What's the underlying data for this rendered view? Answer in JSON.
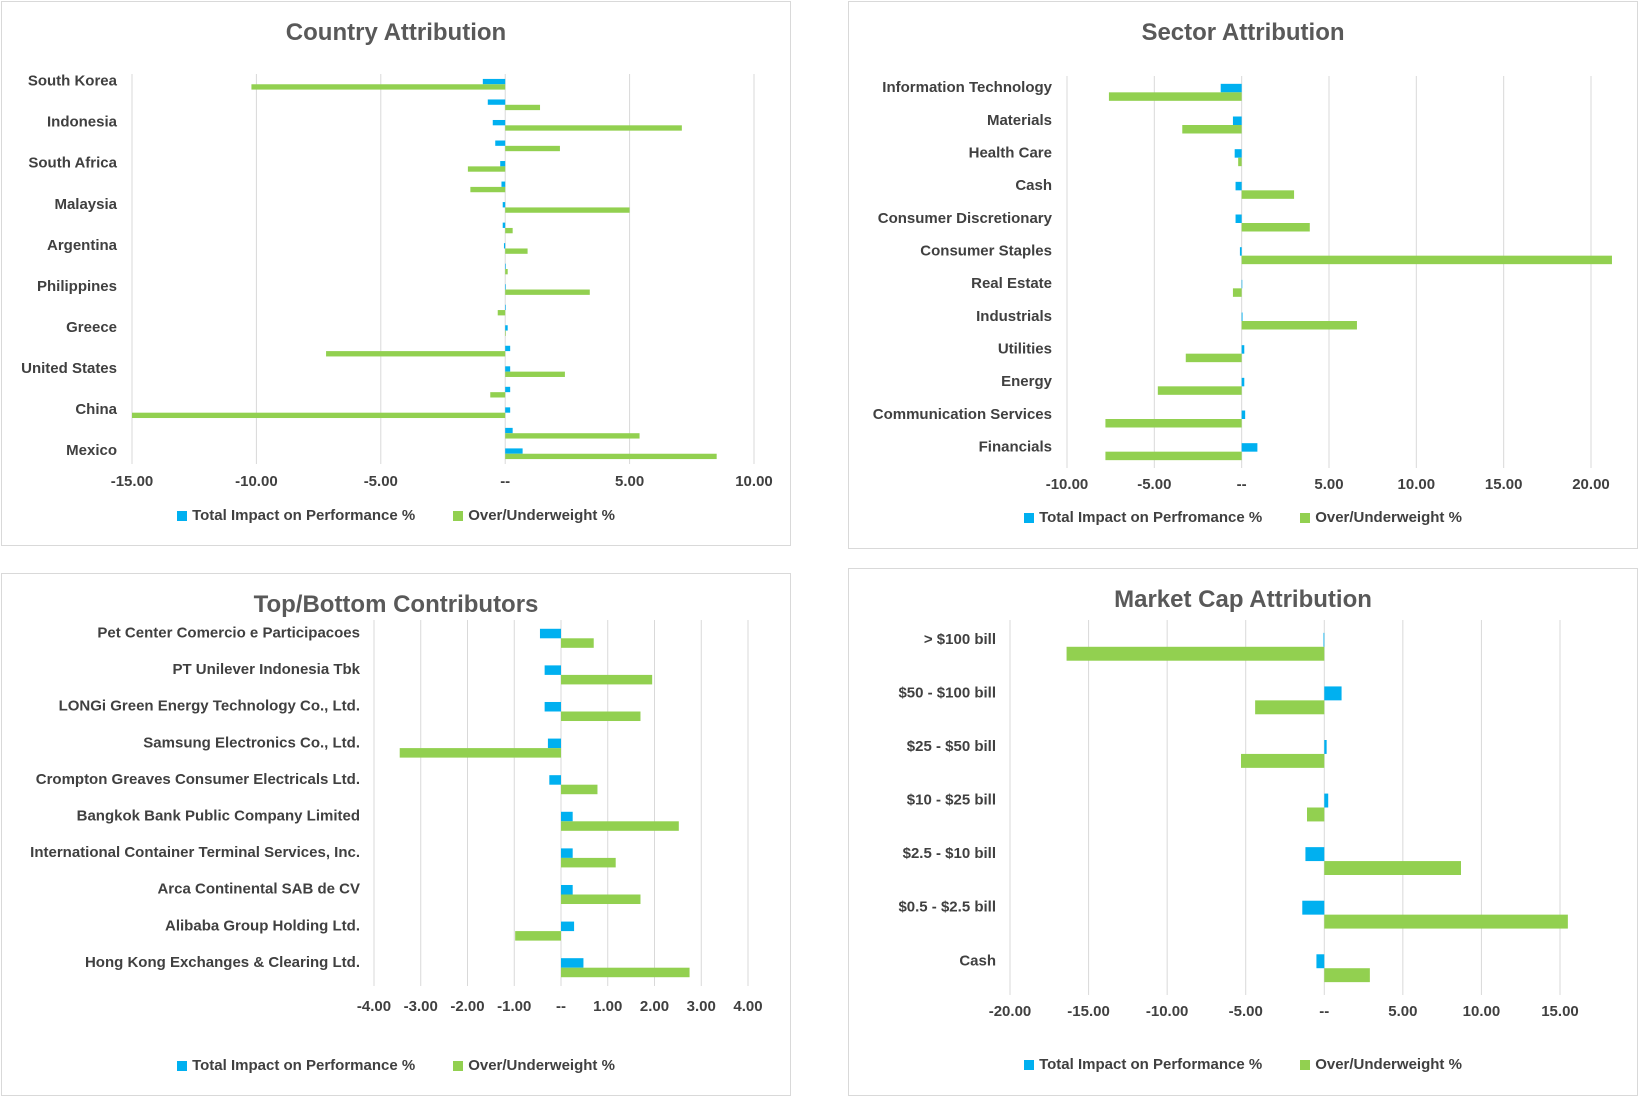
{
  "colors": {
    "impact": "#00b0f0",
    "weight": "#92d050"
  },
  "charts": [
    {
      "title": "Country Attribution",
      "legend": [
        "Total Impact on Performance %",
        "Over/Underweight %"
      ]
    },
    {
      "title": "Sector Attribution",
      "legend": [
        "Total Impact on Perfromance %",
        "Over/Underweight %"
      ]
    },
    {
      "title": "Top/Bottom Contributors",
      "legend": [
        "Total Impact on Performance %",
        "Over/Underweight %"
      ]
    },
    {
      "title": "Market Cap Attribution",
      "legend": [
        "Total Impact on Performance %",
        "Over/Underweight %"
      ]
    }
  ],
  "chart_data": [
    {
      "type": "bar",
      "orientation": "horizontal",
      "title": "Country Attribution",
      "category_labels": [
        "South Korea",
        "Indonesia",
        "South Africa",
        "Malaysia",
        "Argentina",
        "Philippines",
        "Greece",
        "United States",
        "China",
        "Mexico"
      ],
      "rows": 19,
      "label_rows": [
        0,
        2,
        4,
        6,
        8,
        10,
        12,
        14,
        16,
        18
      ],
      "series": [
        {
          "name": "Total Impact on Performance %",
          "values": [
            -0.9,
            -0.7,
            -0.5,
            -0.4,
            -0.2,
            -0.15,
            -0.1,
            -0.1,
            -0.05,
            0,
            0,
            0,
            0.1,
            0.2,
            0.2,
            0.2,
            0.2,
            0.3,
            0.7
          ]
        },
        {
          "name": "Over/Underweight %",
          "values": [
            -10.2,
            1.4,
            7.1,
            2.2,
            -1.5,
            -1.4,
            5.0,
            0.3,
            0.9,
            0.1,
            3.4,
            -0.3,
            0,
            -7.2,
            2.4,
            -0.6,
            -15.0,
            5.4,
            8.5
          ]
        }
      ],
      "xlim": [
        -15,
        10
      ],
      "ticks": [
        -15,
        -10,
        -5,
        0,
        5,
        10
      ],
      "tick_labels": [
        "-15.00",
        "-10.00",
        "-5.00",
        "--",
        "5.00",
        "10.00"
      ],
      "grid": true,
      "legend_position": "bottom"
    },
    {
      "type": "bar",
      "orientation": "horizontal",
      "title": "Sector Attribution",
      "category_labels": [
        "Information Technology",
        "Materials",
        "Health Care",
        "Cash",
        "Consumer Discretionary",
        "Consumer Staples",
        "Real Estate",
        "Industrials",
        "Utilities",
        "Energy",
        "Communication Services",
        "Financials"
      ],
      "rows": 12,
      "label_rows": [
        0,
        1,
        2,
        3,
        4,
        5,
        6,
        7,
        8,
        9,
        10,
        11
      ],
      "series": [
        {
          "name": "Total Impact on Perfromance %",
          "values": [
            -1.2,
            -0.5,
            -0.4,
            -0.35,
            -0.35,
            -0.1,
            0,
            0.05,
            0.15,
            0.15,
            0.2,
            0.9
          ]
        },
        {
          "name": "Over/Underweight %",
          "values": [
            -7.6,
            -3.4,
            -0.2,
            3.0,
            3.9,
            21.2,
            -0.5,
            6.6,
            -3.2,
            -4.8,
            -7.8,
            -7.8
          ]
        }
      ],
      "xlim": [
        -10,
        20
      ],
      "ticks": [
        -10,
        -5,
        0,
        5,
        10,
        15,
        20
      ],
      "tick_labels": [
        "-10.00",
        "-5.00",
        "--",
        "5.00",
        "10.00",
        "15.00",
        "20.00"
      ],
      "grid": true,
      "legend_position": "bottom"
    },
    {
      "type": "bar",
      "orientation": "horizontal",
      "title": "Top/Bottom Contributors",
      "category_labels": [
        "Pet Center Comercio e Participacoes",
        "PT Unilever Indonesia Tbk",
        "LONGi Green Energy Technology Co., Ltd.",
        "Samsung Electronics Co., Ltd.",
        "Crompton Greaves Consumer Electricals Ltd.",
        "Bangkok Bank Public Company Limited",
        "International Container Terminal Services, Inc.",
        "Arca Continental SAB de CV",
        "Alibaba Group Holding Ltd.",
        "Hong Kong Exchanges & Clearing Ltd."
      ],
      "rows": 10,
      "label_rows": [
        0,
        1,
        2,
        3,
        4,
        5,
        6,
        7,
        8,
        9
      ],
      "series": [
        {
          "name": "Total Impact on Performance %",
          "values": [
            -0.45,
            -0.35,
            -0.35,
            -0.28,
            -0.25,
            0.25,
            0.25,
            0.25,
            0.28,
            0.48
          ]
        },
        {
          "name": "Over/Underweight %",
          "values": [
            0.7,
            1.95,
            1.7,
            -3.45,
            0.78,
            2.52,
            1.17,
            1.7,
            -0.98,
            2.75
          ]
        }
      ],
      "xlim": [
        -4,
        4
      ],
      "ticks": [
        -4,
        -3,
        -2,
        -1,
        0,
        1,
        2,
        3,
        4
      ],
      "tick_labels": [
        "-4.00",
        "-3.00",
        "-2.00",
        "-1.00",
        "--",
        "1.00",
        "2.00",
        "3.00",
        "4.00"
      ],
      "grid": true,
      "legend_position": "bottom"
    },
    {
      "type": "bar",
      "orientation": "horizontal",
      "title": "Market Cap Attribution",
      "category_labels": [
        "> $100 bill",
        "$50 - $100 bill",
        "$25 - $50 bill",
        "$10 - $25 bill",
        "$2.5 - $10 bill",
        "$0.5 - $2.5 bill",
        "Cash"
      ],
      "rows": 7,
      "label_rows": [
        0,
        1,
        2,
        3,
        4,
        5,
        6
      ],
      "series": [
        {
          "name": "Total Impact on Performance %",
          "values": [
            -0.05,
            1.1,
            0.15,
            0.25,
            -1.2,
            -1.4,
            -0.5
          ]
        },
        {
          "name": "Over/Underweight %",
          "values": [
            -16.4,
            -4.4,
            -5.3,
            -1.1,
            8.7,
            15.5,
            2.9
          ]
        }
      ],
      "xlim": [
        -20,
        15
      ],
      "ticks": [
        -20,
        -15,
        -10,
        -5,
        0,
        5,
        10,
        15
      ],
      "tick_labels": [
        "-20.00",
        "-15.00",
        "-10.00",
        "-5.00",
        "--",
        "5.00",
        "10.00",
        "15.00"
      ],
      "grid": true,
      "legend_position": "bottom"
    }
  ]
}
